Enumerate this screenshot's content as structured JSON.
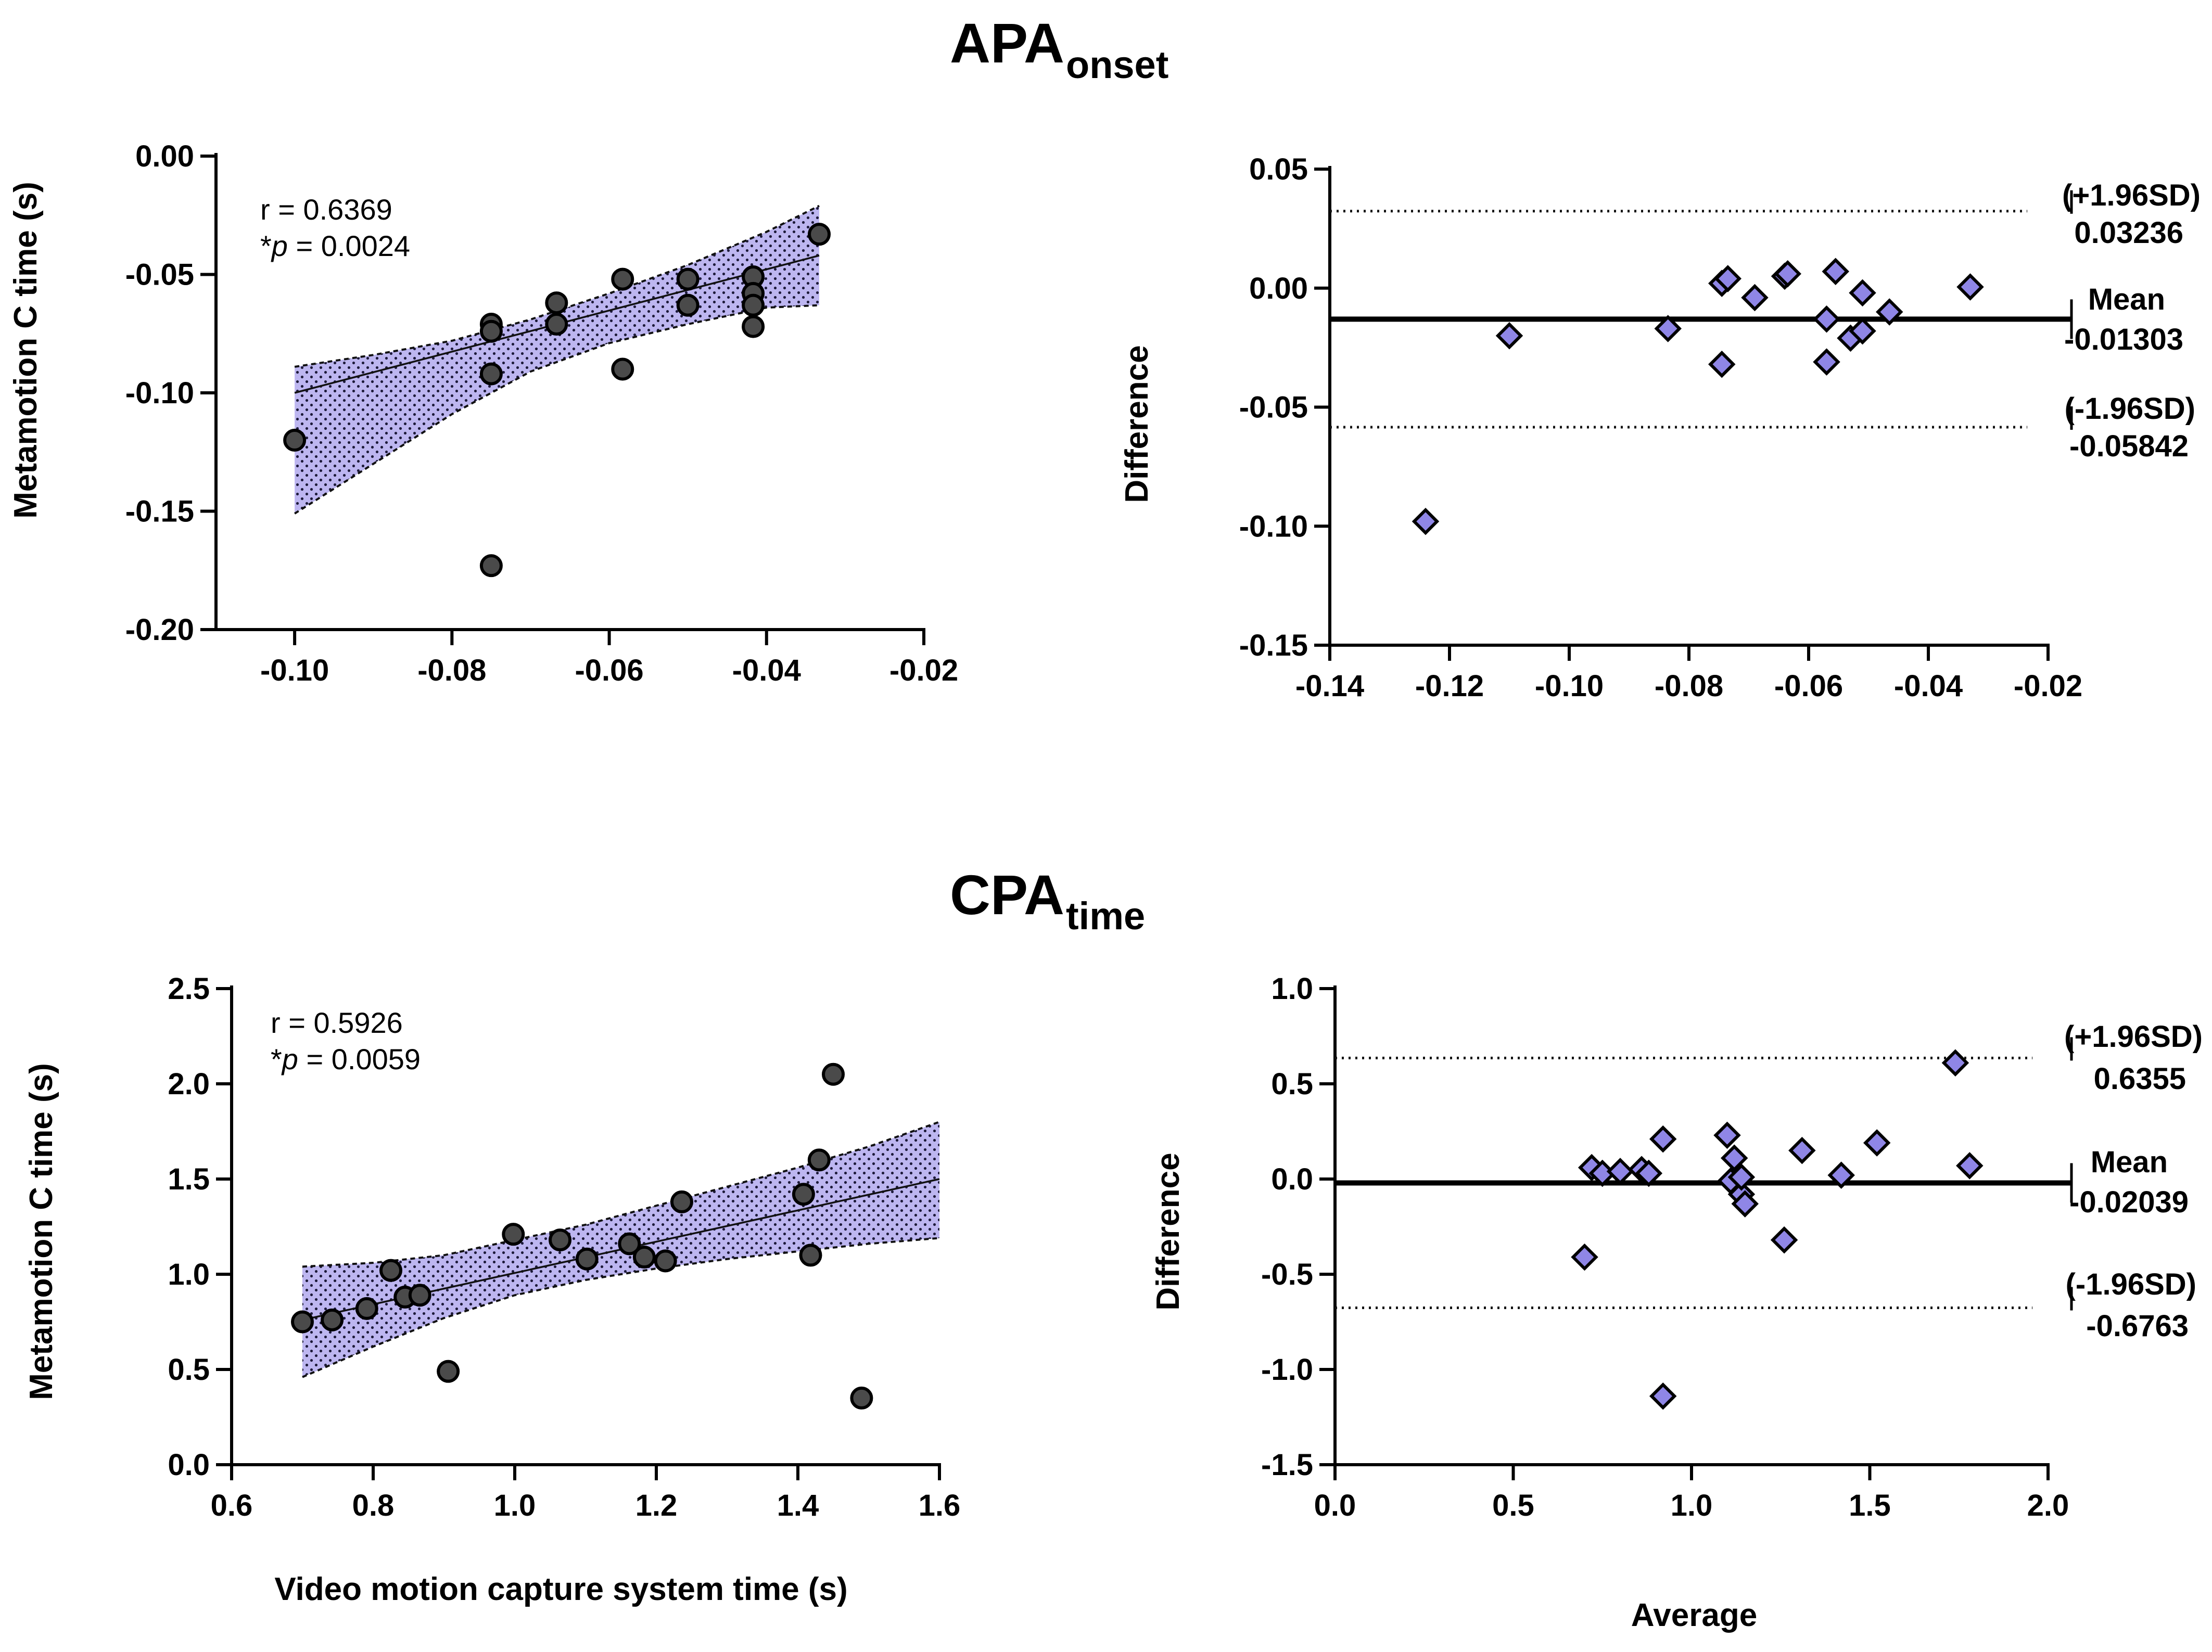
{
  "chart_data": [
    {
      "type": "scatter",
      "id": "apa_corr",
      "title": "APA",
      "title_sub": "onset",
      "xlabel": "",
      "ylabel": "Metamotion C time (s)",
      "xlim": [
        -0.11,
        -0.02
      ],
      "ylim": [
        -0.2,
        0.0
      ],
      "xticks": [
        -0.1,
        -0.08,
        -0.06,
        -0.04,
        -0.02
      ],
      "yticks": [
        -0.2,
        -0.15,
        -0.1,
        -0.05,
        0.0
      ],
      "xtick_labels": [
        "-0.10",
        "-0.08",
        "-0.06",
        "-0.04",
        "-0.02"
      ],
      "ytick_labels": [
        "-0.20",
        "-0.15",
        "-0.10",
        "-0.05",
        "0.00"
      ],
      "r_text": "r = 0.6369",
      "p_prefix": "*",
      "p_symbol": "p",
      "p_value": " = 0.0024",
      "points": [
        {
          "x": -0.1,
          "y": -0.12
        },
        {
          "x": -0.075,
          "y": -0.071
        },
        {
          "x": -0.075,
          "y": -0.074
        },
        {
          "x": -0.075,
          "y": -0.092
        },
        {
          "x": -0.075,
          "y": -0.173
        },
        {
          "x": -0.0667,
          "y": -0.062
        },
        {
          "x": -0.0667,
          "y": -0.071
        },
        {
          "x": -0.0583,
          "y": -0.052
        },
        {
          "x": -0.0583,
          "y": -0.09
        },
        {
          "x": -0.05,
          "y": -0.052
        },
        {
          "x": -0.05,
          "y": -0.063
        },
        {
          "x": -0.0417,
          "y": -0.051
        },
        {
          "x": -0.0417,
          "y": -0.058
        },
        {
          "x": -0.0417,
          "y": -0.063
        },
        {
          "x": -0.0417,
          "y": -0.072
        },
        {
          "x": -0.0333,
          "y": -0.033
        }
      ],
      "fit_line": {
        "x": [
          -0.1,
          -0.0333
        ],
        "y": [
          -0.1,
          -0.042
        ]
      },
      "ci_band": {
        "x": [
          -0.1,
          -0.09,
          -0.08,
          -0.07,
          -0.06,
          -0.05,
          -0.04,
          -0.0333
        ],
        "upper": [
          -0.089,
          -0.084,
          -0.078,
          -0.069,
          -0.058,
          -0.046,
          -0.032,
          -0.021
        ],
        "lower": [
          -0.151,
          -0.13,
          -0.109,
          -0.091,
          -0.079,
          -0.071,
          -0.064,
          -0.063
        ]
      },
      "marker": "circle",
      "marker_color": "#4a4a4a",
      "band_color": "#b9b2ef"
    },
    {
      "type": "scatter",
      "id": "apa_ba",
      "xlabel": "",
      "ylabel": "Difference",
      "xlim": [
        -0.14,
        -0.02
      ],
      "ylim": [
        -0.15,
        0.05
      ],
      "xticks": [
        -0.14,
        -0.12,
        -0.1,
        -0.08,
        -0.06,
        -0.04,
        -0.02
      ],
      "yticks": [
        -0.15,
        -0.1,
        -0.05,
        0.0,
        0.05
      ],
      "xtick_labels": [
        "-0.14",
        "-0.12",
        "-0.10",
        "-0.08",
        "-0.06",
        "-0.04",
        "-0.02"
      ],
      "ytick_labels": [
        "-0.15",
        "-0.10",
        "-0.05",
        "0.00",
        "0.05"
      ],
      "mean": -0.01303,
      "upper_loa": 0.03236,
      "lower_loa": -0.05842,
      "labels": {
        "upper_name": "(+1.96SD)",
        "upper_value": "0.03236",
        "mean_name": "Mean",
        "mean_value": "-0.01303",
        "lower_name": "(-1.96SD)",
        "lower_value": "-0.05842"
      },
      "points": [
        {
          "x": -0.124,
          "y": -0.098
        },
        {
          "x": -0.11,
          "y": -0.02
        },
        {
          "x": -0.0835,
          "y": -0.017
        },
        {
          "x": -0.0745,
          "y": 0.002
        },
        {
          "x": -0.0735,
          "y": 0.004
        },
        {
          "x": -0.0745,
          "y": -0.032
        },
        {
          "x": -0.069,
          "y": -0.004
        },
        {
          "x": -0.064,
          "y": 0.005
        },
        {
          "x": -0.0635,
          "y": 0.006
        },
        {
          "x": -0.057,
          "y": -0.013
        },
        {
          "x": -0.057,
          "y": -0.031
        },
        {
          "x": -0.0555,
          "y": 0.007
        },
        {
          "x": -0.053,
          "y": -0.021
        },
        {
          "x": -0.051,
          "y": -0.018
        },
        {
          "x": -0.051,
          "y": -0.002
        },
        {
          "x": -0.0465,
          "y": -0.01
        },
        {
          "x": -0.033,
          "y": 0.0005
        }
      ],
      "marker": "diamond",
      "marker_color": "#8f86e6"
    },
    {
      "type": "scatter",
      "id": "cpa_corr",
      "title": "CPA",
      "title_sub": "time",
      "xlabel": "Video motion capture system time (s)",
      "ylabel": "Metamotion C time (s)",
      "xlim": [
        0.6,
        1.6
      ],
      "ylim": [
        0.0,
        2.5
      ],
      "xticks": [
        0.6,
        0.8,
        1.0,
        1.2,
        1.4,
        1.6
      ],
      "yticks": [
        0.0,
        0.5,
        1.0,
        1.5,
        2.0,
        2.5
      ],
      "xtick_labels": [
        "0.6",
        "0.8",
        "1.0",
        "1.2",
        "1.4",
        "1.6"
      ],
      "ytick_labels": [
        "0.0",
        "0.5",
        "1.0",
        "1.5",
        "2.0",
        "2.5"
      ],
      "r_text": "r = 0.5926",
      "p_prefix": "*",
      "p_symbol": "p",
      "p_value": " = 0.0059",
      "points": [
        {
          "x": 0.7,
          "y": 0.75
        },
        {
          "x": 0.742,
          "y": 0.76
        },
        {
          "x": 0.791,
          "y": 0.82
        },
        {
          "x": 0.825,
          "y": 1.02
        },
        {
          "x": 0.845,
          "y": 0.88
        },
        {
          "x": 0.866,
          "y": 0.89
        },
        {
          "x": 0.906,
          "y": 0.49
        },
        {
          "x": 0.998,
          "y": 1.21
        },
        {
          "x": 1.064,
          "y": 1.18
        },
        {
          "x": 1.102,
          "y": 1.08
        },
        {
          "x": 1.162,
          "y": 1.16
        },
        {
          "x": 1.183,
          "y": 1.09
        },
        {
          "x": 1.213,
          "y": 1.07
        },
        {
          "x": 1.236,
          "y": 1.38
        },
        {
          "x": 1.408,
          "y": 1.42
        },
        {
          "x": 1.418,
          "y": 1.1
        },
        {
          "x": 1.43,
          "y": 1.6
        },
        {
          "x": 1.45,
          "y": 2.05
        },
        {
          "x": 1.49,
          "y": 0.35
        }
      ],
      "fit_line": {
        "x": [
          0.7,
          1.6
        ],
        "y": [
          0.76,
          1.5
        ]
      },
      "ci_band": {
        "x": [
          0.7,
          0.8,
          0.9,
          1.0,
          1.1,
          1.2,
          1.3,
          1.4,
          1.5,
          1.6
        ],
        "upper": [
          1.04,
          1.06,
          1.1,
          1.18,
          1.26,
          1.36,
          1.46,
          1.56,
          1.67,
          1.8
        ],
        "lower": [
          0.46,
          0.62,
          0.77,
          0.89,
          0.97,
          1.03,
          1.08,
          1.12,
          1.16,
          1.19
        ]
      },
      "marker": "circle",
      "marker_color": "#4a4a4a",
      "band_color": "#b9b2ef"
    },
    {
      "type": "scatter",
      "id": "cpa_ba",
      "xlabel": "Average",
      "ylabel": "Difference",
      "xlim": [
        0.0,
        2.0
      ],
      "ylim": [
        -1.5,
        1.0
      ],
      "xticks": [
        0.0,
        0.5,
        1.0,
        1.5,
        2.0
      ],
      "yticks": [
        -1.5,
        -1.0,
        -0.5,
        0.0,
        0.5,
        1.0
      ],
      "xtick_labels": [
        "0.0",
        "0.5",
        "1.0",
        "1.5",
        "2.0"
      ],
      "ytick_labels": [
        "-1.5",
        "-1.0",
        "-0.5",
        "0.0",
        "0.5",
        "1.0"
      ],
      "mean": -0.02039,
      "upper_loa": 0.6355,
      "lower_loa": -0.6763,
      "labels": {
        "upper_name": "(+1.96SD)",
        "upper_value": "0.6355",
        "mean_name": "Mean",
        "mean_value": "-0.02039",
        "lower_name": "(-1.96SD)",
        "lower_value": "-0.6763"
      },
      "points": [
        {
          "x": 0.7,
          "y": -0.41
        },
        {
          "x": 0.72,
          "y": 0.06
        },
        {
          "x": 0.75,
          "y": 0.03
        },
        {
          "x": 0.8,
          "y": 0.04
        },
        {
          "x": 0.86,
          "y": 0.05
        },
        {
          "x": 0.88,
          "y": 0.03
        },
        {
          "x": 0.92,
          "y": 0.21
        },
        {
          "x": 0.92,
          "y": -1.14
        },
        {
          "x": 1.1,
          "y": 0.23
        },
        {
          "x": 1.11,
          "y": -0.01
        },
        {
          "x": 1.12,
          "y": 0.11
        },
        {
          "x": 1.14,
          "y": -0.08
        },
        {
          "x": 1.14,
          "y": 0.01
        },
        {
          "x": 1.15,
          "y": -0.13
        },
        {
          "x": 1.26,
          "y": -0.32
        },
        {
          "x": 1.31,
          "y": 0.15
        },
        {
          "x": 1.42,
          "y": 0.02
        },
        {
          "x": 1.52,
          "y": 0.19
        },
        {
          "x": 1.74,
          "y": 0.61
        },
        {
          "x": 1.78,
          "y": 0.07
        }
      ],
      "marker": "diamond",
      "marker_color": "#8f86e6"
    }
  ]
}
